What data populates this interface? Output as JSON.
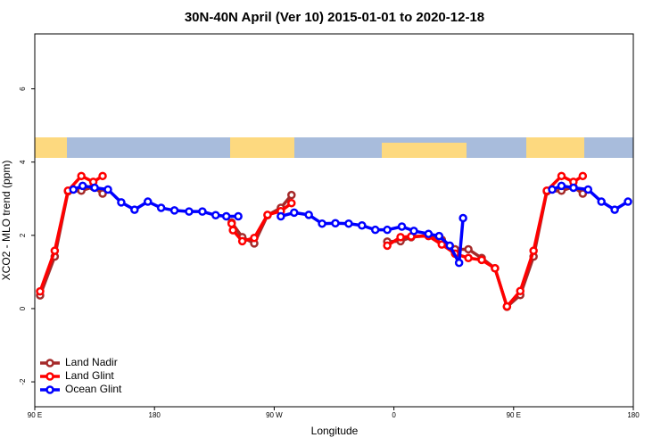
{
  "chart_data": {
    "type": "line",
    "title": "30N-40N April (Ver 10)   2015-01-01 to 2020-12-18",
    "x_label": "Longitude",
    "y_label": "XCO2 - MLO trend (ppm)",
    "xlim": [
      90,
      540
    ],
    "ylim": [
      -2.68,
      7.5
    ],
    "xticks": [
      {
        "value": 90,
        "label": "90 E"
      },
      {
        "value": 180,
        "label": "180"
      },
      {
        "value": 270,
        "label": "90 W"
      },
      {
        "value": 360,
        "label": "0"
      },
      {
        "value": 450,
        "label": "90 E"
      },
      {
        "value": 540,
        "label": "180"
      }
    ],
    "yticks": [
      -2,
      0,
      2,
      4,
      6
    ],
    "legend": "bottom-left",
    "series": [
      {
        "name": "Land Nadir",
        "color": "#a52a2a",
        "x": [
          94,
          105,
          115,
          125,
          134,
          141,
          null,
          238,
          246,
          255,
          265,
          275,
          283,
          null,
          355,
          365,
          373,
          386,
          396,
          406,
          416,
          426,
          436,
          445,
          455,
          465,
          475,
          486,
          495,
          502
        ],
        "values": [
          0.36,
          1.42,
          3.2,
          3.22,
          3.32,
          3.14,
          null,
          2.35,
          1.95,
          1.78,
          2.55,
          2.75,
          3.1,
          null,
          1.83,
          1.84,
          1.95,
          2.0,
          1.88,
          1.62,
          1.62,
          1.38,
          1.1,
          0.05,
          0.37,
          1.42,
          3.2,
          3.22,
          3.32,
          3.14
        ]
      },
      {
        "name": "Land Glint",
        "color": "#ff0000",
        "x": [
          94,
          105,
          115,
          125,
          134,
          141,
          null,
          238,
          239,
          246,
          255,
          265,
          275,
          283,
          null,
          355,
          365,
          373,
          386,
          396,
          406,
          416,
          426,
          436,
          445,
          455,
          465,
          475,
          486,
          495,
          502
        ],
        "values": [
          0.47,
          1.58,
          3.22,
          3.62,
          3.46,
          3.62,
          null,
          2.32,
          2.14,
          1.84,
          1.93,
          2.56,
          2.66,
          2.88,
          null,
          1.72,
          1.95,
          1.97,
          1.98,
          1.75,
          1.5,
          1.38,
          1.33,
          1.1,
          0.06,
          0.48,
          1.58,
          3.22,
          3.62,
          3.46,
          3.62
        ]
      },
      {
        "name": "Ocean Glint",
        "color": "#0000ff",
        "x": [
          119,
          126,
          135,
          145,
          155,
          165,
          175,
          185,
          195,
          206,
          216,
          226,
          234,
          243,
          null,
          275,
          285,
          296,
          306,
          316,
          326,
          336,
          346,
          355,
          366,
          375,
          386,
          394,
          402,
          409,
          412,
          null,
          479,
          486,
          495,
          506,
          516,
          526,
          536
        ],
        "values": [
          3.25,
          3.35,
          3.3,
          3.25,
          2.9,
          2.7,
          2.92,
          2.75,
          2.68,
          2.65,
          2.65,
          2.55,
          2.52,
          2.52,
          null,
          2.52,
          2.62,
          2.56,
          2.32,
          2.33,
          2.32,
          2.27,
          2.15,
          2.15,
          2.24,
          2.12,
          2.04,
          1.98,
          1.72,
          1.25,
          2.47,
          null,
          3.25,
          3.35,
          3.3,
          3.25,
          2.92,
          2.7,
          2.92
        ]
      }
    ]
  }
}
